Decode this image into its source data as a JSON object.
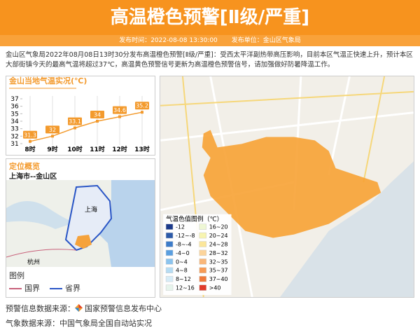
{
  "header": {
    "title": "高温橙色预警[Ⅱ级/严重]",
    "time": "发布时间：2022-08-08 13:30:00",
    "unit": "发布单位：金山区气象局"
  },
  "description": "金山区气象局2022年08月08日13时30分发布高温橙色预警[Ⅱ级/严重]：受西太平洋副热带高压影响，目前本区气温正快速上升，预计本区大部街镇今天的最高气温将超过37℃，高温黄色预警信号更新为高温橙色预警信号，请加强做好防暑降温工作。",
  "chart_data": {
    "type": "line",
    "title": "金山当地气温实况(℃)",
    "categories": [
      "8时",
      "9时",
      "10时",
      "11时",
      "12时",
      "13时"
    ],
    "values": [
      31.3,
      32,
      33.1,
      34,
      34.6,
      35.2
    ],
    "color": "#f39a2d",
    "ylim": [
      31,
      37
    ],
    "yticks": [
      31,
      32,
      33,
      34,
      35,
      36,
      37
    ],
    "grid": true
  },
  "location": {
    "title": "定位概览",
    "place": "上海市--金山区",
    "map_labels": [
      "上海",
      "杭州"
    ],
    "legend_title": "图例",
    "legend": [
      {
        "label": "国界",
        "color": "#c8607a"
      },
      {
        "label": "省界",
        "color": "#2a56c6"
      }
    ]
  },
  "map_legend": {
    "title": "气温色值图例（℃）",
    "items": [
      {
        "label": "-12",
        "color": "#1c3a8a"
      },
      {
        "label": "-12~-8",
        "color": "#2c5aa8"
      },
      {
        "label": "-8~-4",
        "color": "#3d7cc9"
      },
      {
        "label": "-4~0",
        "color": "#5a9fe0"
      },
      {
        "label": "0~4",
        "color": "#8cc4ee"
      },
      {
        "label": "4~8",
        "color": "#b6dcf3"
      },
      {
        "label": "8~12",
        "color": "#d6ecf7"
      },
      {
        "label": "12~16",
        "color": "#e6f4ec"
      },
      {
        "label": "16~20",
        "color": "#eef7d4"
      },
      {
        "label": "20~24",
        "color": "#f7f4b0"
      },
      {
        "label": "24~28",
        "color": "#fbe69a"
      },
      {
        "label": "28~32",
        "color": "#fcd49b"
      },
      {
        "label": "32~35",
        "color": "#f9b77a"
      },
      {
        "label": "35~37",
        "color": "#f79b55"
      },
      {
        "label": "37~40",
        "color": "#f07a3a"
      },
      {
        "label": ">40",
        "color": "#e03a2a"
      }
    ]
  },
  "footer": {
    "warning_source_label": "预警信息数据来源：",
    "warning_source": "国家预警信息发布中心",
    "weather_source": "气象数据来源：中国气象局全国自动站实况"
  }
}
